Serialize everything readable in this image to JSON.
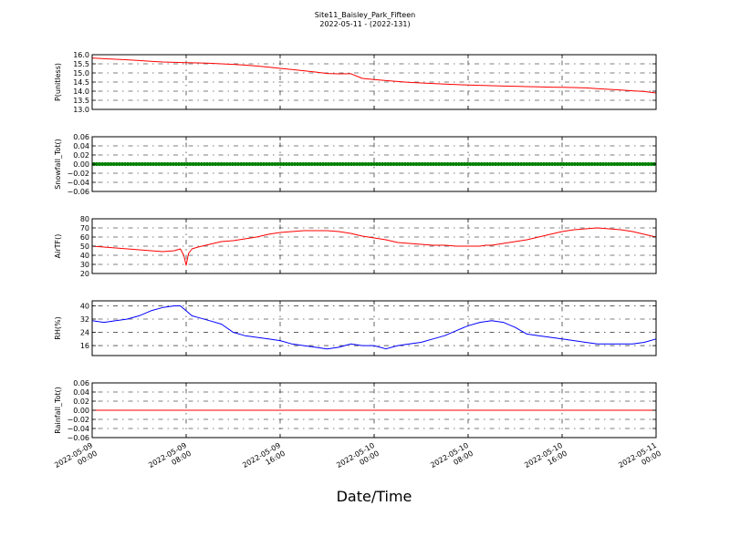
{
  "figure": {
    "title_line1": "Site11_Baisley_Park_Fifteen",
    "title_line2": "2022-05-11 - (2022-131)",
    "xlabel": "Date/Time"
  },
  "chart_data": [
    {
      "type": "line",
      "ylabel": "P(unitless)",
      "ylim": [
        13.0,
        16.0
      ],
      "yticks": [
        "13.0",
        "13.5",
        "14.0",
        "14.5",
        "15.0",
        "15.5",
        "16.0"
      ],
      "ytick_values": [
        13.0,
        13.5,
        14.0,
        14.5,
        15.0,
        15.5,
        16.0
      ],
      "grid": true,
      "series": [
        {
          "color": "#ff0000",
          "style": "line",
          "x": [
            0,
            2,
            4,
            6,
            8,
            10,
            12,
            14,
            16,
            18,
            20,
            22,
            24,
            26,
            28,
            30,
            32,
            34,
            36,
            38,
            40,
            42,
            44,
            46,
            48
          ],
          "y": [
            15.82,
            15.72,
            15.64,
            15.58,
            15.55,
            15.47,
            15.38,
            15.25,
            15.12,
            14.97,
            14.95,
            14.7,
            14.58,
            14.48,
            14.42,
            14.36,
            14.32,
            14.28,
            14.25,
            14.22,
            14.2,
            14.14,
            14.06,
            13.98,
            13.9
          ],
          "dense_x": [
            0,
            1,
            2,
            3,
            4,
            5,
            6,
            7,
            8,
            9,
            10,
            11,
            12,
            13,
            14,
            15,
            16,
            17,
            18,
            19,
            20,
            21,
            22,
            23,
            24,
            25,
            26,
            27,
            28,
            29,
            30,
            31,
            32,
            33,
            34,
            35,
            36,
            37,
            38,
            39,
            40,
            41,
            42,
            43,
            44,
            45,
            46,
            47,
            48
          ],
          "dense_y": [
            15.82,
            15.78,
            15.75,
            15.72,
            15.68,
            15.64,
            15.6,
            15.58,
            15.56,
            15.55,
            15.53,
            15.5,
            15.47,
            15.43,
            15.38,
            15.32,
            15.25,
            15.19,
            15.12,
            15.05,
            14.97,
            14.95,
            14.96,
            14.7,
            14.64,
            14.58,
            14.53,
            14.48,
            14.45,
            14.42,
            14.39,
            14.36,
            14.34,
            14.32,
            14.3,
            14.28,
            14.27,
            14.25,
            14.24,
            14.22,
            14.21,
            14.2,
            14.18,
            14.14,
            14.1,
            14.06,
            14.02,
            13.98,
            13.9
          ]
        }
      ]
    },
    {
      "type": "scatter",
      "ylabel": "Snowfall_Tot()",
      "ylim": [
        -0.06,
        0.06
      ],
      "yticks": [
        "−0.06",
        "−0.04",
        "−0.02",
        "0.00",
        "0.02",
        "0.04",
        "0.06"
      ],
      "ytick_values": [
        -0.06,
        -0.04,
        -0.02,
        0.0,
        0.02,
        0.04,
        0.06
      ],
      "grid": true,
      "series": [
        {
          "color": "#008000",
          "style": "dots",
          "constant": 0.0
        }
      ]
    },
    {
      "type": "line",
      "ylabel": "AirTF()",
      "ylim": [
        20,
        80
      ],
      "yticks": [
        "20",
        "30",
        "40",
        "50",
        "60",
        "70",
        "80"
      ],
      "ytick_values": [
        20,
        30,
        40,
        50,
        60,
        70,
        80
      ],
      "grid": true,
      "series": [
        {
          "color": "#ff0000",
          "style": "line",
          "x": [
            0,
            1,
            2,
            3,
            4,
            5,
            6,
            7,
            7.5,
            7.8,
            8.0,
            8.2,
            8.5,
            9,
            10,
            11,
            12,
            13,
            14,
            15,
            16,
            17,
            18,
            19,
            20,
            21,
            22,
            23,
            24,
            25,
            26,
            27,
            28,
            29,
            30,
            31,
            32,
            33,
            33.5,
            34,
            35,
            36,
            37,
            38,
            39,
            40,
            41,
            42,
            43,
            44,
            45,
            46,
            47,
            48
          ],
          "y": [
            50,
            49,
            48,
            47,
            46,
            45,
            44,
            45,
            47,
            40,
            29,
            42,
            47,
            49,
            52,
            55,
            56,
            58,
            60,
            63,
            65,
            66,
            67,
            67,
            67,
            66,
            64,
            61,
            59,
            57,
            54,
            53,
            52,
            51,
            51,
            50,
            50,
            50,
            51,
            51,
            53,
            55,
            57,
            60,
            63,
            66,
            68,
            69,
            70,
            69,
            68,
            66,
            63,
            60
          ]
        }
      ]
    },
    {
      "type": "line",
      "ylabel": "RH(%)",
      "ylim": [
        10,
        43
      ],
      "yticks": [
        "16",
        "24",
        "32",
        "40"
      ],
      "ytick_values": [
        16,
        24,
        32,
        40
      ],
      "grid": true,
      "series": [
        {
          "color": "#0000ff",
          "style": "line",
          "x": [
            0,
            1,
            2,
            3,
            4,
            5,
            6,
            7,
            7.5,
            8,
            8.5,
            9,
            10,
            11,
            12,
            13,
            14,
            15,
            16,
            17,
            18,
            19,
            20,
            21,
            22,
            23,
            24,
            25,
            26,
            27,
            28,
            29,
            30,
            31,
            32,
            33,
            34,
            35,
            36,
            37,
            38,
            39,
            40,
            41,
            42,
            43,
            44,
            45,
            46,
            47,
            48
          ],
          "y": [
            31,
            30,
            31,
            32,
            34,
            37,
            39,
            40,
            40,
            37,
            34,
            33,
            31,
            29,
            24,
            22,
            21,
            20,
            19,
            17,
            16,
            15,
            14,
            15,
            17,
            16,
            16,
            14,
            16,
            17,
            18,
            20,
            22,
            25,
            28,
            30,
            31,
            30,
            27,
            23,
            22,
            21,
            20,
            19,
            18,
            17,
            17,
            17,
            17,
            18,
            20
          ]
        }
      ]
    },
    {
      "type": "line",
      "ylabel": "Rainfall_Tot()",
      "ylim": [
        -0.06,
        0.06
      ],
      "yticks": [
        "−0.06",
        "−0.04",
        "−0.02",
        "0.00",
        "0.02",
        "0.04",
        "0.06"
      ],
      "ytick_values": [
        -0.06,
        -0.04,
        -0.02,
        0.0,
        0.02,
        0.04,
        0.06
      ],
      "grid": true,
      "series": [
        {
          "color": "#ff0000",
          "style": "line",
          "constant": 0.0
        }
      ]
    }
  ],
  "x_axis": {
    "range_hours": [
      0,
      48
    ],
    "tick_hours": [
      0,
      8,
      16,
      24,
      32,
      40,
      48
    ],
    "tick_labels": [
      [
        "2022-05-09",
        "00:00"
      ],
      [
        "2022-05-09",
        "08:00"
      ],
      [
        "2022-05-09",
        "16:00"
      ],
      [
        "2022-05-10",
        "00:00"
      ],
      [
        "2022-05-10",
        "08:00"
      ],
      [
        "2022-05-10",
        "16:00"
      ],
      [
        "2022-05-11",
        "00:00"
      ]
    ]
  }
}
